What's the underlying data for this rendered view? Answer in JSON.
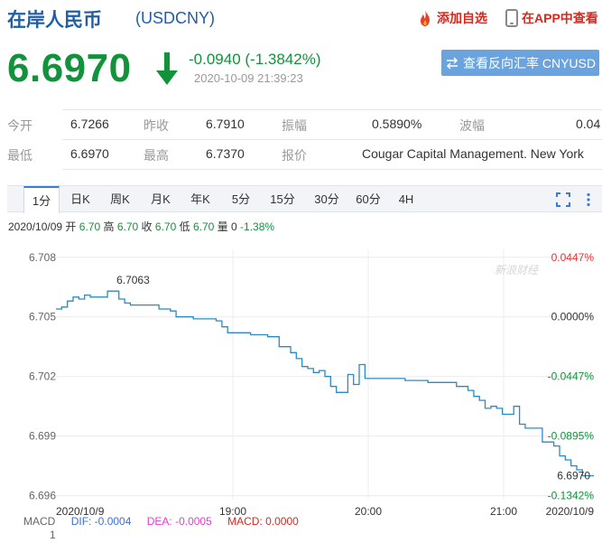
{
  "header": {
    "title": "在岸人民币",
    "code": "(USDCNY)",
    "add_fav": "添加自选",
    "app_view": "在APP中查看"
  },
  "quote": {
    "price": "6.6970",
    "change": "-0.0940 (-1.3842%)",
    "datetime": "2020-10-09 21:39:23",
    "reverse_btn": "查看反向汇率 CNYUSD",
    "reverse_icon": "swap-arrows-icon",
    "rows": [
      [
        {
          "l": "今开",
          "v": "6.7266"
        },
        {
          "l": "昨收",
          "v": "6.7910"
        },
        {
          "l": "振幅",
          "v": "0.5890%"
        },
        {
          "l": "波幅",
          "v": "0.04"
        }
      ],
      [
        {
          "l": "最低",
          "v": "6.6970"
        },
        {
          "l": "最高",
          "v": "6.7370"
        },
        {
          "l": "报价",
          "v": "Cougar Capital Management. New York"
        }
      ]
    ]
  },
  "tabs": [
    "1分",
    "日K",
    "周K",
    "月K",
    "年K",
    "5分",
    "15分",
    "30分",
    "60分",
    "4H"
  ],
  "active_tab": "1分",
  "info": {
    "date": "2020/10/09",
    "open_l": "开",
    "open": "6.70",
    "high_l": "高",
    "high": "6.70",
    "close_l": "收",
    "close": "6.70",
    "low_l": "低",
    "low": "6.70",
    "vol_l": "量",
    "vol": "0",
    "pct": "-1.38%"
  },
  "chart_data": {
    "type": "line",
    "y_ticks": [
      "6.708",
      "6.705",
      "6.702",
      "6.699",
      "6.696"
    ],
    "ylim": [
      6.6958,
      6.7084
    ],
    "pct_ticks": [
      {
        "label": "0.0447%",
        "color": "#e03333"
      },
      {
        "label": "0.0000%",
        "color": "#333333"
      },
      {
        "label": "-0.0447%",
        "color": "#12923b"
      },
      {
        "label": "-0.0895%",
        "color": "#12923b"
      },
      {
        "label": "-0.1342%",
        "color": "#12923b"
      }
    ],
    "x_ticks": [
      "2020/10/9",
      "19:00",
      "20:00",
      "21:00",
      "2020/10/9"
    ],
    "watermark": "新浪财经",
    "max_label": "6.7063",
    "last_label": "6.6970",
    "line_color": "#2a8bc4",
    "series": [
      {
        "values": [
          6.7054,
          6.7055,
          6.7058,
          6.706,
          6.7059,
          6.7061,
          6.706,
          6.706,
          6.706,
          6.7063,
          6.7063,
          6.7059,
          6.7057,
          6.7056,
          6.7056,
          6.7056,
          6.7056,
          6.7056,
          6.7054,
          6.7054,
          6.7053,
          6.705,
          6.705,
          6.705,
          6.7049,
          6.7049,
          6.7049,
          6.7049,
          6.7048,
          6.7045,
          6.7042,
          6.7042,
          6.7042,
          6.7042,
          6.7041,
          6.7041,
          6.7041,
          6.704,
          6.704,
          6.7035,
          6.7035,
          6.7032,
          6.7029,
          6.7025,
          6.7024,
          6.7022,
          6.7023,
          6.702,
          6.7015,
          6.7012,
          6.7012,
          6.7021,
          6.7016,
          6.7026,
          6.7019,
          6.7019,
          6.7019,
          6.7019,
          6.7019,
          6.7019,
          6.7019,
          6.7018,
          6.7018,
          6.7018,
          6.7018,
          6.7017,
          6.7017,
          6.7017,
          6.7017,
          6.7017,
          6.7015,
          6.7015,
          6.7013,
          6.701,
          6.7008,
          6.7004,
          6.7005,
          6.7004,
          6.7001,
          6.7001,
          6.7005,
          6.6996,
          6.6994,
          6.6994,
          6.6994,
          6.6987,
          6.6987,
          6.6985,
          6.698,
          6.6978,
          6.6975,
          6.6973,
          6.697,
          6.697,
          6.697
        ]
      }
    ]
  },
  "macd": {
    "label": "MACD",
    "dif": "DIF: -0.0004",
    "dea": "DEA: -0.0005",
    "macd": "MACD: 0.0000",
    "axis": "1"
  },
  "colors": {
    "up": "#e03333",
    "down": "#12923b",
    "brand": "#1f5ea8",
    "dif": "#3a6fd8",
    "dea": "#e040d0",
    "macd": "#d9271d"
  }
}
